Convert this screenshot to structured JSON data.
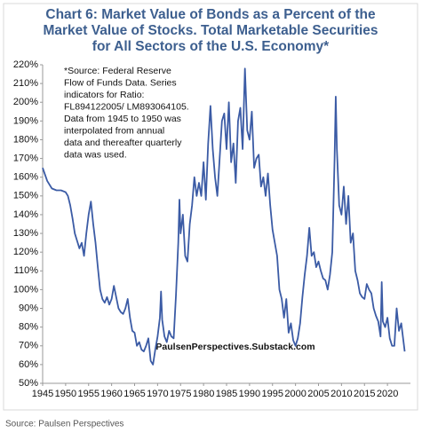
{
  "chart_data": {
    "type": "line",
    "title": [
      "Chart 6: Market Value of Bonds as a Percent of the",
      "Market Value of Stocks.  Total Marketable Securities",
      "for All Sectors of the U.S. Economy*"
    ],
    "annotation": [
      "*Source: Federal Reserve",
      "Flow of Funds Data.  Series",
      "indicators for Ratio:",
      "FL894122005/ LM893064105.",
      "Data from 1945 to 1950 was",
      "interpolated from annual",
      "data and thereafter quarterly",
      "data was used."
    ],
    "watermark": "PaulsenPerspectives.Substack.com",
    "source": "Source: Paulsen Perspectives",
    "color": "#3b5ba5",
    "xlim": [
      1945,
      2025
    ],
    "xticks": [
      1945,
      1950,
      1955,
      1960,
      1965,
      1970,
      1975,
      1980,
      1985,
      1990,
      1995,
      2000,
      2005,
      2010,
      2015,
      2020
    ],
    "ylim": [
      50,
      220
    ],
    "yticks": [
      {
        "value": 50,
        "label": "50%"
      },
      {
        "value": 60,
        "label": "60%"
      },
      {
        "value": 70,
        "label": "70%"
      },
      {
        "value": 80,
        "label": "80%"
      },
      {
        "value": 90,
        "label": "90%"
      },
      {
        "value": 100,
        "label": "100%"
      },
      {
        "value": 110,
        "label": "110%"
      },
      {
        "value": 120,
        "label": "120%"
      },
      {
        "value": 130,
        "label": "130%"
      },
      {
        "value": 140,
        "label": "140%"
      },
      {
        "value": 150,
        "label": "150%"
      },
      {
        "value": 160,
        "label": "160%"
      },
      {
        "value": 170,
        "label": "170%"
      },
      {
        "value": 180,
        "label": "180%"
      },
      {
        "value": 190,
        "label": "190%"
      },
      {
        "value": 200,
        "label": "200%"
      },
      {
        "value": 210,
        "label": "210%"
      },
      {
        "value": 220,
        "label": "220%"
      }
    ],
    "x": [
      1945,
      1946,
      1947,
      1948,
      1949,
      1950,
      1950.5,
      1951,
      1951.5,
      1952,
      1952.5,
      1953,
      1953.5,
      1954,
      1954.5,
      1955,
      1955.5,
      1956,
      1956.5,
      1957,
      1957.5,
      1958,
      1958.5,
      1959,
      1959.5,
      1960,
      1960.5,
      1961,
      1961.5,
      1962,
      1962.5,
      1963,
      1963.5,
      1964,
      1964.5,
      1965,
      1965.5,
      1966,
      1966.5,
      1967,
      1967.5,
      1968,
      1968.5,
      1969,
      1969.5,
      1970,
      1970.5,
      1970.75,
      1971,
      1971.5,
      1972,
      1972.5,
      1973,
      1973.5,
      1974,
      1974.5,
      1974.75,
      1975,
      1975.5,
      1976,
      1976.5,
      1977,
      1977.5,
      1978,
      1978.5,
      1979,
      1979.5,
      1980,
      1980.5,
      1981,
      1981.5,
      1982,
      1982.5,
      1983,
      1983.5,
      1984,
      1984.5,
      1985,
      1985.5,
      1986,
      1986.5,
      1987,
      1987.5,
      1988,
      1988.5,
      1989,
      1989.5,
      1990,
      1990.5,
      1991,
      1991.5,
      1992,
      1992.5,
      1993,
      1993.5,
      1994,
      1994.5,
      1995,
      1995.5,
      1996,
      1996.5,
      1997,
      1997.5,
      1998,
      1998.5,
      1999,
      1999.5,
      2000,
      2000.5,
      2001,
      2001.5,
      2002,
      2002.5,
      2003,
      2003.5,
      2004,
      2004.5,
      2005,
      2005.5,
      2006,
      2006.5,
      2007,
      2007.5,
      2008,
      2008.5,
      2008.75,
      2009,
      2009.5,
      2010,
      2010.5,
      2011,
      2011.5,
      2012,
      2012.5,
      2013,
      2013.5,
      2014,
      2014.5,
      2015,
      2015.5,
      2016,
      2016.5,
      2017,
      2017.5,
      2018,
      2018.5,
      2018.75,
      2019,
      2019.5,
      2020,
      2020.5,
      2021,
      2021.5,
      2022,
      2022.5,
      2023,
      2023.5,
      2023.75
    ],
    "values": [
      165,
      158,
      154,
      153,
      153,
      152,
      150,
      145,
      138,
      130,
      126,
      122,
      125,
      118,
      130,
      140,
      147,
      135,
      125,
      112,
      100,
      95,
      93,
      96,
      92,
      95,
      102,
      96,
      90,
      88,
      87,
      90,
      95,
      85,
      78,
      77,
      70,
      72,
      68,
      67,
      70,
      74,
      62,
      60,
      68,
      75,
      85,
      99,
      84,
      75,
      72,
      78,
      75,
      74,
      97,
      125,
      148,
      130,
      140,
      118,
      115,
      135,
      145,
      160,
      150,
      157,
      150,
      168,
      148,
      178,
      198,
      175,
      160,
      150,
      170,
      190,
      194,
      175,
      200,
      168,
      178,
      157,
      190,
      197,
      175,
      218,
      185,
      180,
      195,
      165,
      170,
      172,
      155,
      160,
      150,
      162,
      145,
      132,
      125,
      118,
      100,
      95,
      85,
      95,
      77,
      82,
      73,
      70,
      74,
      82,
      96,
      108,
      118,
      133,
      118,
      120,
      112,
      115,
      110,
      106,
      105,
      100,
      108,
      120,
      170,
      203,
      175,
      145,
      140,
      155,
      135,
      150,
      125,
      130,
      110,
      105,
      98,
      96,
      95,
      103,
      100,
      98,
      90,
      86,
      83,
      75,
      104,
      83,
      80,
      85,
      74,
      70,
      70,
      90,
      78,
      82,
      72,
      67
    ]
  }
}
